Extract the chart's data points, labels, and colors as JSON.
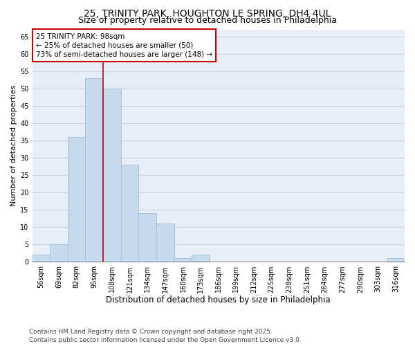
{
  "title1": "25, TRINITY PARK, HOUGHTON LE SPRING, DH4 4UL",
  "title2": "Size of property relative to detached houses in Philadelphia",
  "xlabel": "Distribution of detached houses by size in Philadelphia",
  "ylabel": "Number of detached properties",
  "categories": [
    "56sqm",
    "69sqm",
    "82sqm",
    "95sqm",
    "108sqm",
    "121sqm",
    "134sqm",
    "147sqm",
    "160sqm",
    "173sqm",
    "186sqm",
    "199sqm",
    "212sqm",
    "225sqm",
    "238sqm",
    "251sqm",
    "264sqm",
    "277sqm",
    "290sqm",
    "303sqm",
    "316sqm"
  ],
  "values": [
    2,
    5,
    36,
    53,
    50,
    28,
    14,
    11,
    1,
    2,
    0,
    0,
    0,
    0,
    0,
    0,
    0,
    0,
    0,
    0,
    1
  ],
  "bar_color": "#c6d9ed",
  "bar_edge_color": "#a8c4d8",
  "vline_x": 3.5,
  "vline_color": "#cc0000",
  "annotation_text": "25 TRINITY PARK: 98sqm\n← 25% of detached houses are smaller (50)\n73% of semi-detached houses are larger (148) →",
  "annotation_box_color": "#ffffff",
  "annotation_box_edge": "#cc0000",
  "ylim": [
    0,
    67
  ],
  "yticks": [
    0,
    5,
    10,
    15,
    20,
    25,
    30,
    35,
    40,
    45,
    50,
    55,
    60,
    65
  ],
  "grid_color": "#c8d4e4",
  "bg_color": "#e8eef8",
  "footer1": "Contains HM Land Registry data © Crown copyright and database right 2025.",
  "footer2": "Contains public sector information licensed under the Open Government Licence v3.0.",
  "title1_fontsize": 10,
  "title2_fontsize": 9,
  "xlabel_fontsize": 8.5,
  "ylabel_fontsize": 8,
  "tick_fontsize": 7,
  "footer_fontsize": 6.5,
  "ann_fontsize": 7.5
}
